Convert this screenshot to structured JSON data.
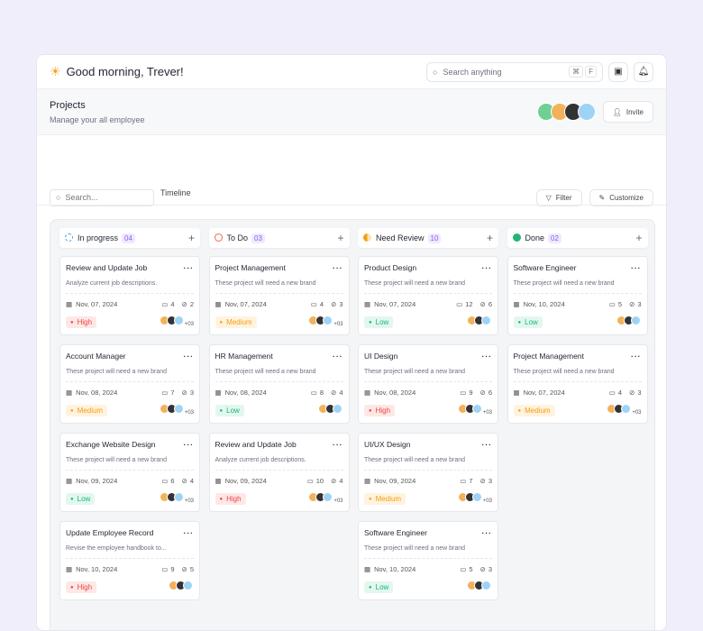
{
  "header": {
    "greeting": "Good morning, Trever!",
    "search_placeholder": "Search anything",
    "shortcut": [
      "⌘",
      "F"
    ]
  },
  "page": {
    "title": "Projects",
    "subtitle": "Manage your all employee",
    "invite": "Invite"
  },
  "toolbar": {
    "search_placeholder": "Search...",
    "tab": "Timeline",
    "filter": "Filter",
    "customize": "Customize"
  },
  "colors": {
    "high": "#ef4444",
    "medium": "#f59e0b",
    "low": "#10b981",
    "accent": "#8b5cf6"
  },
  "columns": [
    {
      "name": "In progress",
      "count": "04",
      "icon": "dashed-circle-icon",
      "cards": [
        {
          "title": "Review and Update Job",
          "desc": "Analyze current job descriptions.",
          "date": "Nov, 07, 2024",
          "comments": "4",
          "attachments": "2",
          "priority": "High",
          "more": "+03"
        },
        {
          "title": "Account Manager",
          "desc": "These project will need a new brand",
          "date": "Nov, 08, 2024",
          "comments": "7",
          "attachments": "3",
          "priority": "Medium",
          "more": "+03"
        },
        {
          "title": "Exchange Website Design",
          "desc": "These project will need a new brand",
          "date": "Nov, 09, 2024",
          "comments": "6",
          "attachments": "4",
          "priority": "Low",
          "more": "+03"
        },
        {
          "title": "Update Employee Record",
          "desc": "Revise the employee handbook to...",
          "date": "Nov, 10, 2024",
          "comments": "9",
          "attachments": "5",
          "priority": "High",
          "more": ""
        }
      ]
    },
    {
      "name": "To Do",
      "count": "03",
      "icon": "circle-icon",
      "cards": [
        {
          "title": "Project Management",
          "desc": "These project will need a new brand",
          "date": "Nov, 07, 2024",
          "comments": "4",
          "attachments": "3",
          "priority": "Medium",
          "more": "+03"
        },
        {
          "title": "HR Management",
          "desc": "These project will need a new brand",
          "date": "Nov, 08, 2024",
          "comments": "8",
          "attachments": "4",
          "priority": "Low",
          "more": ""
        },
        {
          "title": "Review and Update Job",
          "desc": "Analyze current job descriptions.",
          "date": "Nov, 09, 2024",
          "comments": "10",
          "attachments": "4",
          "priority": "High",
          "more": "+03"
        }
      ]
    },
    {
      "name": "Need Review",
      "count": "10",
      "icon": "half-circle-icon",
      "cards": [
        {
          "title": "Product Design",
          "desc": "These project will need a new brand",
          "date": "Nov, 07, 2024",
          "comments": "12",
          "attachments": "6",
          "priority": "Low",
          "more": ""
        },
        {
          "title": "UI Design",
          "desc": "These project will need a new brand",
          "date": "Nov, 08, 2024",
          "comments": "9",
          "attachments": "6",
          "priority": "High",
          "more": "+03"
        },
        {
          "title": "UI/UX Design",
          "desc": "These project will need a new brand",
          "date": "Nov, 09, 2024",
          "comments": "7",
          "attachments": "3",
          "priority": "Medium",
          "more": "+03"
        },
        {
          "title": "Software Engineer",
          "desc": "These project will need a new brand",
          "date": "Nov, 10, 2024",
          "comments": "5",
          "attachments": "3",
          "priority": "Low",
          "more": ""
        }
      ]
    },
    {
      "name": "Done",
      "count": "02",
      "icon": "check-circle-icon",
      "cards": [
        {
          "title": "Software Engineer",
          "desc": "These project will need a new brand",
          "date": "Nov, 10, 2024",
          "comments": "5",
          "attachments": "3",
          "priority": "Low",
          "more": ""
        },
        {
          "title": "Project Management",
          "desc": "These project will need a new brand",
          "date": "Nov, 07, 2024",
          "comments": "4",
          "attachments": "3",
          "priority": "Medium",
          "more": "+03"
        }
      ]
    }
  ]
}
